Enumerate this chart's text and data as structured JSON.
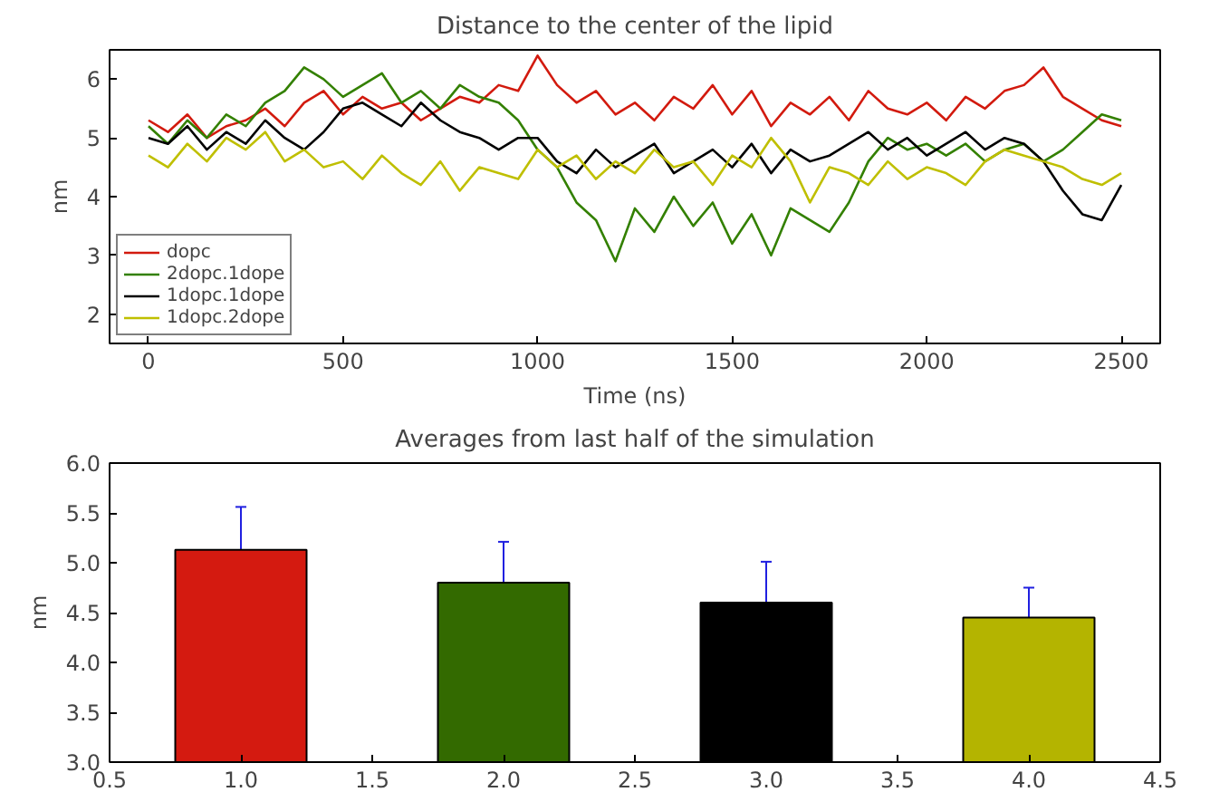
{
  "chart_data": [
    {
      "type": "line",
      "title": "Distance to the center of the lipid",
      "xlabel": "Time (ns)",
      "ylabel": "nm",
      "x": [
        0,
        50,
        100,
        150,
        200,
        250,
        300,
        350,
        400,
        450,
        500,
        550,
        600,
        650,
        700,
        750,
        800,
        850,
        900,
        950,
        1000,
        1050,
        1100,
        1150,
        1200,
        1250,
        1300,
        1350,
        1400,
        1450,
        1500,
        1550,
        1600,
        1650,
        1700,
        1750,
        1800,
        1850,
        1900,
        1950,
        2000,
        2050,
        2100,
        2150,
        2200,
        2250,
        2300,
        2350,
        2400,
        2450,
        2500
      ],
      "series": [
        {
          "name": "dopc",
          "color": "#d21a0e",
          "values": [
            5.3,
            5.1,
            5.4,
            5.0,
            5.2,
            5.3,
            5.5,
            5.2,
            5.6,
            5.8,
            5.4,
            5.7,
            5.5,
            5.6,
            5.3,
            5.5,
            5.7,
            5.6,
            5.9,
            5.8,
            6.4,
            5.9,
            5.6,
            5.8,
            5.4,
            5.6,
            5.3,
            5.7,
            5.5,
            5.9,
            5.4,
            5.8,
            5.2,
            5.6,
            5.4,
            5.7,
            5.3,
            5.8,
            5.5,
            5.4,
            5.6,
            5.3,
            5.7,
            5.5,
            5.8,
            5.9,
            6.2,
            5.7,
            5.5,
            5.3,
            5.2
          ]
        },
        {
          "name": "2dopc.1dope",
          "color": "#338000",
          "values": [
            5.2,
            4.9,
            5.3,
            5.0,
            5.4,
            5.2,
            5.6,
            5.8,
            6.2,
            6.0,
            5.7,
            5.9,
            6.1,
            5.6,
            5.8,
            5.5,
            5.9,
            5.7,
            5.6,
            5.3,
            4.8,
            4.5,
            3.9,
            3.6,
            2.9,
            3.8,
            3.4,
            4.0,
            3.5,
            3.9,
            3.2,
            3.7,
            3.0,
            3.8,
            3.6,
            3.4,
            3.9,
            4.6,
            5.0,
            4.8,
            4.9,
            4.7,
            4.9,
            4.6,
            4.8,
            4.9,
            4.6,
            4.8,
            5.1,
            5.4,
            5.3
          ]
        },
        {
          "name": "1dopc.1dope",
          "color": "#000000",
          "values": [
            5.0,
            4.9,
            5.2,
            4.8,
            5.1,
            4.9,
            5.3,
            5.0,
            4.8,
            5.1,
            5.5,
            5.6,
            5.4,
            5.2,
            5.6,
            5.3,
            5.1,
            5.0,
            4.8,
            5.0,
            5.0,
            4.6,
            4.4,
            4.8,
            4.5,
            4.7,
            4.9,
            4.4,
            4.6,
            4.8,
            4.5,
            4.9,
            4.4,
            4.8,
            4.6,
            4.7,
            4.9,
            5.1,
            4.8,
            5.0,
            4.7,
            4.9,
            5.1,
            4.8,
            5.0,
            4.9,
            4.6,
            4.1,
            3.7,
            3.6,
            4.2
          ]
        },
        {
          "name": "1dopc.2dope",
          "color": "#bfbf00",
          "values": [
            4.7,
            4.5,
            4.9,
            4.6,
            5.0,
            4.8,
            5.1,
            4.6,
            4.8,
            4.5,
            4.6,
            4.3,
            4.7,
            4.4,
            4.2,
            4.6,
            4.1,
            4.5,
            4.4,
            4.3,
            4.8,
            4.5,
            4.7,
            4.3,
            4.6,
            4.4,
            4.8,
            4.5,
            4.6,
            4.2,
            4.7,
            4.5,
            5.0,
            4.6,
            3.9,
            4.5,
            4.4,
            4.2,
            4.6,
            4.3,
            4.5,
            4.4,
            4.2,
            4.6,
            4.8,
            4.7,
            4.6,
            4.5,
            4.3,
            4.2,
            4.4
          ]
        }
      ],
      "xlim": [
        -100,
        2600
      ],
      "ylim": [
        1.5,
        6.5
      ],
      "xticks": [
        0,
        500,
        1000,
        1500,
        2000,
        2500
      ],
      "yticks": [
        2,
        3,
        4,
        5,
        6
      ],
      "grid": false,
      "legend": "bottom left"
    },
    {
      "type": "bar",
      "title": "Averages from last half of the simulation",
      "ylabel": "nm",
      "x": [
        1,
        2,
        3,
        4
      ],
      "values": [
        5.13,
        4.8,
        4.6,
        4.45
      ],
      "colors": [
        "#d41a10",
        "#336a00",
        "#000000",
        "#b4b400"
      ],
      "errors": [
        0.43,
        0.41,
        0.41,
        0.3
      ],
      "xlim": [
        0.5,
        4.5
      ],
      "ylim": [
        3.0,
        6.0
      ],
      "xticks": [
        0.5,
        {
          "value": 1,
          "label": "1.0"
        },
        1.5,
        {
          "value": 2,
          "label": "2.0"
        },
        2.5,
        {
          "value": 3,
          "label": "3.0"
        },
        3.5,
        {
          "value": 4,
          "label": "4.0"
        },
        4.5
      ],
      "yticks": [
        {
          "value": 3,
          "label": "3.0"
        },
        3.5,
        {
          "value": 4,
          "label": "4.0"
        },
        4.5,
        {
          "value": 5,
          "label": "5.0"
        },
        5.5,
        {
          "value": 6,
          "label": "6.0"
        }
      ],
      "grid": false
    }
  ]
}
